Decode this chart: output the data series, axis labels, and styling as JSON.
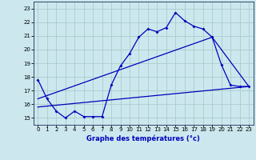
{
  "xlabel": "Graphe des températures (°c)",
  "bg_color": "#cce8ee",
  "line_color": "#0000bb",
  "grid_color": "#aacccc",
  "xlim_min": -0.5,
  "xlim_max": 23.5,
  "ylim_min": 14.5,
  "ylim_max": 23.5,
  "yticks": [
    15,
    16,
    17,
    18,
    19,
    20,
    21,
    22,
    23
  ],
  "xticks": [
    0,
    1,
    2,
    3,
    4,
    5,
    6,
    7,
    8,
    9,
    10,
    11,
    12,
    13,
    14,
    15,
    16,
    17,
    18,
    19,
    20,
    21,
    22,
    23
  ],
  "series1_x": [
    0,
    1,
    2,
    3,
    4,
    5,
    6,
    7,
    8,
    9,
    10,
    11,
    12,
    13,
    14,
    15,
    16,
    17,
    18,
    19,
    20,
    21,
    22,
    23
  ],
  "series1_y": [
    17.8,
    16.4,
    15.5,
    15.0,
    15.5,
    15.1,
    15.1,
    15.1,
    17.4,
    18.8,
    19.7,
    20.9,
    21.5,
    21.3,
    21.6,
    22.7,
    22.1,
    21.7,
    21.5,
    20.9,
    18.9,
    17.4,
    17.3,
    17.3
  ],
  "series2_x": [
    0,
    23
  ],
  "series2_y": [
    15.8,
    17.3
  ],
  "series3_x": [
    0,
    19,
    23
  ],
  "series3_y": [
    16.4,
    20.9,
    17.3
  ],
  "tick_fontsize": 5.0,
  "xlabel_fontsize": 6.0,
  "marker_size": 2.0,
  "linewidth": 0.9
}
